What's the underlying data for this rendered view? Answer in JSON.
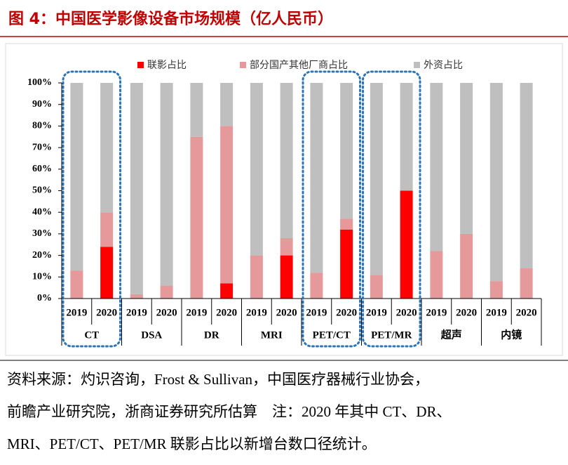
{
  "chart_data": {
    "type": "stacked_bar",
    "title": "图 4：中国医学影像设备市场规模（亿人民币）",
    "categories": [
      "2019",
      "2020",
      "2019",
      "2020",
      "2019",
      "2020",
      "2019",
      "2020",
      "2019",
      "2020",
      "2019",
      "2020",
      "2019",
      "2020",
      "2019",
      "2020"
    ],
    "groups": [
      "CT",
      "DSA",
      "DR",
      "MRI",
      "PET/CT",
      "PET/MR",
      "超声",
      "内镜"
    ],
    "highlight_groups": [
      0,
      4,
      5
    ],
    "series": [
      {
        "name": "联影占比",
        "color": "#ff0000",
        "values": [
          0,
          24,
          0,
          0,
          0,
          7,
          0,
          20,
          0,
          32,
          0,
          50,
          0,
          0,
          0,
          0
        ]
      },
      {
        "name": "部分国产其他厂商占比",
        "color": "#e6999a",
        "values": [
          13,
          16,
          2,
          6,
          75,
          73,
          20,
          8,
          12,
          5,
          11,
          0,
          22,
          30,
          8,
          14
        ]
      },
      {
        "name": "外资占比",
        "color": "#bfbfbf",
        "values": [
          87,
          60,
          98,
          94,
          25,
          20,
          80,
          72,
          88,
          63,
          89,
          50,
          78,
          70,
          92,
          86
        ]
      }
    ],
    "ylim": [
      0,
      100
    ],
    "yticks": [
      {
        "value": 0,
        "label": "0%"
      },
      {
        "value": 10,
        "label": "10%"
      },
      {
        "value": 20,
        "label": "20%"
      },
      {
        "value": 30,
        "label": "30%"
      },
      {
        "value": 40,
        "label": "40%"
      },
      {
        "value": 50,
        "label": "50%"
      },
      {
        "value": 60,
        "label": "60%"
      },
      {
        "value": 70,
        "label": "70%"
      },
      {
        "value": 80,
        "label": "80%"
      },
      {
        "value": 90,
        "label": "90%"
      },
      {
        "value": 100,
        "label": "100%"
      }
    ],
    "source": [
      "资料来源：灼识咨询，Frost & Sullivan，中国医疗器械行业协会，",
      "前瞻产业研究院，浙商证券研究所估算　注：2020 年其中 CT、DR、",
      "MRI、PET/CT、PET/MR 联影占比以新增台数口径统计。"
    ]
  }
}
